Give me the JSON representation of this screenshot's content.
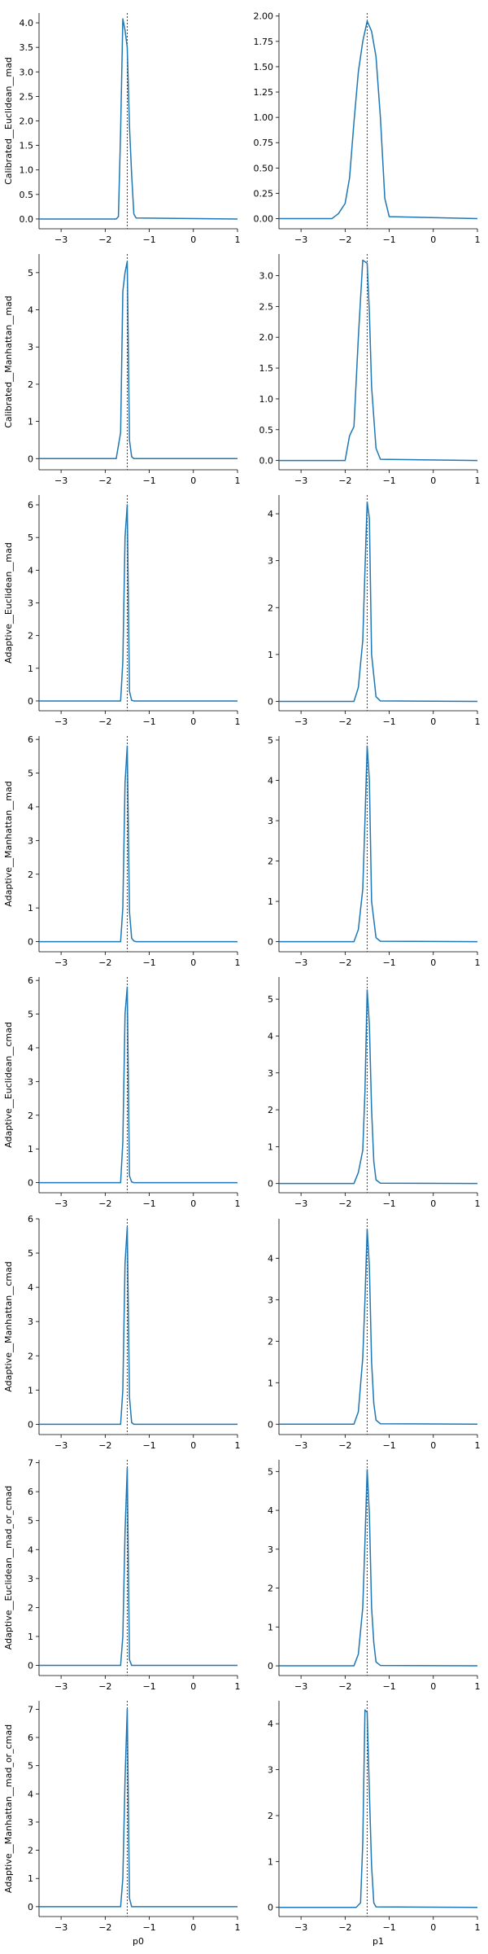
{
  "chart_data": [
    {
      "type": "line",
      "row_label": "Calibrated__Euclidean__mad",
      "xlabel": "",
      "xlim": [
        -3.5,
        1.0
      ],
      "ylim": [
        -0.2,
        4.2
      ],
      "xticks": [
        -3,
        -2,
        -1,
        0,
        1
      ],
      "yticks": [
        0.0,
        0.5,
        1.0,
        1.5,
        2.0,
        2.5,
        3.0,
        3.5,
        4.0
      ],
      "ytick_labels": [
        "0.0",
        "0.5",
        "1.0",
        "1.5",
        "2.0",
        "2.5",
        "3.0",
        "3.5",
        "4.0"
      ],
      "reference_x": -1.5,
      "series": [
        {
          "x": [
            -3.5,
            -1.75,
            -1.7,
            -1.65,
            -1.6,
            -1.55,
            -1.5,
            -1.45,
            -1.4,
            -1.35,
            -1.3,
            1.0
          ],
          "y": [
            0,
            0,
            0.05,
            1.8,
            4.08,
            3.85,
            3.5,
            1.9,
            0.9,
            0.1,
            0.02,
            0
          ]
        }
      ]
    },
    {
      "type": "line",
      "row_label": "",
      "xlabel": "",
      "xlim": [
        -3.5,
        1.0
      ],
      "ylim": [
        -0.1,
        2.03
      ],
      "xticks": [
        -3,
        -2,
        -1,
        0,
        1
      ],
      "yticks": [
        0.0,
        0.25,
        0.5,
        0.75,
        1.0,
        1.25,
        1.5,
        1.75,
        2.0
      ],
      "ytick_labels": [
        "0.00",
        "0.25",
        "0.50",
        "0.75",
        "1.00",
        "1.25",
        "1.50",
        "1.75",
        "2.00"
      ],
      "reference_x": -1.5,
      "series": [
        {
          "x": [
            -3.5,
            -2.3,
            -2.15,
            -2.0,
            -1.9,
            -1.8,
            -1.7,
            -1.6,
            -1.5,
            -1.4,
            -1.3,
            -1.2,
            -1.1,
            -1.0,
            1.0
          ],
          "y": [
            0,
            0,
            0.05,
            0.15,
            0.4,
            0.95,
            1.45,
            1.75,
            1.95,
            1.85,
            1.6,
            1.0,
            0.2,
            0.02,
            0
          ]
        }
      ]
    },
    {
      "type": "line",
      "row_label": "Calibrated__Manhattan__mad",
      "xlabel": "",
      "xlim": [
        -3.5,
        1.0
      ],
      "ylim": [
        -0.3,
        5.5
      ],
      "xticks": [
        -3,
        -2,
        -1,
        0,
        1
      ],
      "yticks": [
        0,
        1,
        2,
        3,
        4,
        5
      ],
      "ytick_labels": [
        "0",
        "1",
        "2",
        "3",
        "4",
        "5"
      ],
      "reference_x": -1.5,
      "series": [
        {
          "x": [
            -3.5,
            -1.75,
            -1.65,
            -1.6,
            -1.55,
            -1.5,
            -1.45,
            -1.4,
            -1.35,
            1.0
          ],
          "y": [
            0,
            0,
            0.7,
            4.5,
            5.0,
            5.3,
            0.5,
            0.05,
            0,
            0
          ]
        }
      ]
    },
    {
      "type": "line",
      "row_label": "",
      "xlabel": "",
      "xlim": [
        -3.5,
        1.0
      ],
      "ylim": [
        -0.15,
        3.35
      ],
      "xticks": [
        -3,
        -2,
        -1,
        0,
        1
      ],
      "yticks": [
        0.0,
        0.5,
        1.0,
        1.5,
        2.0,
        2.5,
        3.0
      ],
      "ytick_labels": [
        "0.0",
        "0.5",
        "1.0",
        "1.5",
        "2.0",
        "2.5",
        "3.0"
      ],
      "reference_x": -1.5,
      "series": [
        {
          "x": [
            -3.5,
            -2.0,
            -1.9,
            -1.8,
            -1.7,
            -1.6,
            -1.5,
            -1.45,
            -1.4,
            -1.3,
            -1.2,
            1.0
          ],
          "y": [
            0,
            0,
            0.4,
            0.55,
            2.0,
            3.25,
            3.2,
            2.4,
            1.2,
            0.2,
            0.02,
            0
          ]
        }
      ]
    },
    {
      "type": "line",
      "row_label": "Adaptive__Euclidean__mad",
      "xlabel": "",
      "xlim": [
        -3.5,
        1.0
      ],
      "ylim": [
        -0.3,
        6.3
      ],
      "xticks": [
        -3,
        -2,
        -1,
        0,
        1
      ],
      "yticks": [
        0,
        1,
        2,
        3,
        4,
        5,
        6
      ],
      "ytick_labels": [
        "0",
        "1",
        "2",
        "3",
        "4",
        "5",
        "6"
      ],
      "reference_x": -1.5,
      "series": [
        {
          "x": [
            -3.5,
            -1.65,
            -1.6,
            -1.55,
            -1.5,
            -1.45,
            -1.4,
            -1.35,
            1.0
          ],
          "y": [
            0,
            0,
            1.2,
            5.0,
            6.0,
            0.3,
            0.02,
            0,
            0
          ]
        }
      ]
    },
    {
      "type": "line",
      "row_label": "",
      "xlabel": "",
      "xlim": [
        -3.5,
        1.0
      ],
      "ylim": [
        -0.2,
        4.4
      ],
      "xticks": [
        -3,
        -2,
        -1,
        0,
        1
      ],
      "yticks": [
        0,
        1,
        2,
        3,
        4
      ],
      "ytick_labels": [
        "0",
        "1",
        "2",
        "3",
        "4"
      ],
      "reference_x": -1.5,
      "series": [
        {
          "x": [
            -3.5,
            -1.8,
            -1.7,
            -1.6,
            -1.55,
            -1.5,
            -1.45,
            -1.4,
            -1.3,
            -1.2,
            1.0
          ],
          "y": [
            0,
            0,
            0.3,
            1.3,
            2.8,
            4.25,
            3.9,
            1.0,
            0.1,
            0.01,
            0
          ]
        }
      ]
    },
    {
      "type": "line",
      "row_label": "Adaptive__Manhattan__mad",
      "xlabel": "",
      "xlim": [
        -3.5,
        1.0
      ],
      "ylim": [
        -0.3,
        6.1
      ],
      "xticks": [
        -3,
        -2,
        -1,
        0,
        1
      ],
      "yticks": [
        0,
        1,
        2,
        3,
        4,
        5,
        6
      ],
      "ytick_labels": [
        "0",
        "1",
        "2",
        "3",
        "4",
        "5",
        "6"
      ],
      "reference_x": -1.5,
      "series": [
        {
          "x": [
            -3.5,
            -1.65,
            -1.6,
            -1.55,
            -1.5,
            -1.45,
            -1.4,
            -1.35,
            -1.3,
            1.0
          ],
          "y": [
            0,
            0,
            1.0,
            4.7,
            5.8,
            0.9,
            0.1,
            0.02,
            0,
            0
          ]
        }
      ]
    },
    {
      "type": "line",
      "row_label": "",
      "xlabel": "",
      "xlim": [
        -3.5,
        1.0
      ],
      "ylim": [
        -0.25,
        5.1
      ],
      "xticks": [
        -3,
        -2,
        -1,
        0,
        1
      ],
      "yticks": [
        0,
        1,
        2,
        3,
        4,
        5
      ],
      "ytick_labels": [
        "0",
        "1",
        "2",
        "3",
        "4",
        "5"
      ],
      "reference_x": -1.5,
      "series": [
        {
          "x": [
            -3.5,
            -1.8,
            -1.7,
            -1.6,
            -1.55,
            -1.5,
            -1.45,
            -1.4,
            -1.3,
            -1.2,
            1.0
          ],
          "y": [
            0,
            0,
            0.3,
            1.3,
            3.0,
            4.85,
            4.0,
            1.0,
            0.1,
            0.01,
            0
          ]
        }
      ]
    },
    {
      "type": "line",
      "row_label": "Adaptive__Euclidean__cmad",
      "xlabel": "",
      "xlim": [
        -3.5,
        1.0
      ],
      "ylim": [
        -0.3,
        6.1
      ],
      "xticks": [
        -3,
        -2,
        -1,
        0,
        1
      ],
      "yticks": [
        0,
        1,
        2,
        3,
        4,
        5,
        6
      ],
      "ytick_labels": [
        "0",
        "1",
        "2",
        "3",
        "4",
        "5",
        "6"
      ],
      "reference_x": -1.5,
      "series": [
        {
          "x": [
            -3.5,
            -1.65,
            -1.6,
            -1.55,
            -1.5,
            -1.45,
            -1.4,
            -1.35,
            1.0
          ],
          "y": [
            0,
            0,
            1.2,
            5.0,
            5.8,
            0.2,
            0.02,
            0,
            0
          ]
        }
      ]
    },
    {
      "type": "line",
      "row_label": "",
      "xlabel": "",
      "xlim": [
        -3.5,
        1.0
      ],
      "ylim": [
        -0.25,
        5.6
      ],
      "xticks": [
        -3,
        -2,
        -1,
        0,
        1
      ],
      "yticks": [
        0,
        1,
        2,
        3,
        4,
        5
      ],
      "ytick_labels": [
        "0",
        "1",
        "2",
        "3",
        "4",
        "5"
      ],
      "reference_x": -1.5,
      "series": [
        {
          "x": [
            -3.5,
            -1.8,
            -1.7,
            -1.6,
            -1.55,
            -1.5,
            -1.45,
            -1.4,
            -1.35,
            -1.3,
            -1.2,
            1.0
          ],
          "y": [
            0,
            0,
            0.3,
            0.9,
            2.5,
            5.25,
            4.3,
            2.0,
            0.6,
            0.1,
            0.01,
            0
          ]
        }
      ]
    },
    {
      "type": "line",
      "row_label": "Adaptive__Manhattan__cmad",
      "xlabel": "",
      "xlim": [
        -3.5,
        1.0
      ],
      "ylim": [
        -0.3,
        6.0
      ],
      "xticks": [
        -3,
        -2,
        -1,
        0,
        1
      ],
      "yticks": [
        0,
        1,
        2,
        3,
        4,
        5,
        6
      ],
      "ytick_labels": [
        "0",
        "1",
        "2",
        "3",
        "4",
        "5",
        "6"
      ],
      "reference_x": -1.5,
      "series": [
        {
          "x": [
            -3.5,
            -1.65,
            -1.6,
            -1.55,
            -1.5,
            -1.45,
            -1.4,
            -1.35,
            1.0
          ],
          "y": [
            0,
            0,
            1.0,
            4.7,
            5.75,
            0.8,
            0.05,
            0,
            0
          ]
        }
      ]
    },
    {
      "type": "line",
      "row_label": "",
      "xlabel": "",
      "xlim": [
        -3.5,
        1.0
      ],
      "ylim": [
        -0.25,
        4.95
      ],
      "xticks": [
        -3,
        -2,
        -1,
        0,
        1
      ],
      "yticks": [
        0,
        1,
        2,
        3,
        4
      ],
      "ytick_labels": [
        "0",
        "1",
        "2",
        "3",
        "4"
      ],
      "reference_x": -1.5,
      "series": [
        {
          "x": [
            -3.5,
            -1.8,
            -1.7,
            -1.6,
            -1.55,
            -1.5,
            -1.45,
            -1.4,
            -1.35,
            -1.3,
            -1.2,
            1.0
          ],
          "y": [
            0,
            0,
            0.3,
            1.6,
            3.0,
            4.7,
            3.8,
            1.5,
            0.5,
            0.1,
            0.01,
            0
          ]
        }
      ]
    },
    {
      "type": "line",
      "row_label": "Adaptive__Euclidean__mad_or_cmad",
      "xlabel": "",
      "xlim": [
        -3.5,
        1.0
      ],
      "ylim": [
        -0.35,
        7.1
      ],
      "xticks": [
        -3,
        -2,
        -1,
        0,
        1
      ],
      "yticks": [
        0,
        1,
        2,
        3,
        4,
        5,
        6,
        7
      ],
      "ytick_labels": [
        "0",
        "1",
        "2",
        "3",
        "4",
        "5",
        "6",
        "7"
      ],
      "reference_x": -1.5,
      "series": [
        {
          "x": [
            -3.5,
            -1.65,
            -1.6,
            -1.55,
            -1.5,
            -1.45,
            -1.4,
            1.0
          ],
          "y": [
            0,
            0,
            1.0,
            4.6,
            6.8,
            0.2,
            0,
            0
          ]
        }
      ]
    },
    {
      "type": "line",
      "row_label": "",
      "xlabel": "",
      "xlim": [
        -3.5,
        1.0
      ],
      "ylim": [
        -0.25,
        5.3
      ],
      "xticks": [
        -3,
        -2,
        -1,
        0,
        1
      ],
      "yticks": [
        0,
        1,
        2,
        3,
        4,
        5
      ],
      "ytick_labels": [
        "0",
        "1",
        "2",
        "3",
        "4",
        "5"
      ],
      "reference_x": -1.5,
      "series": [
        {
          "x": [
            -3.5,
            -1.8,
            -1.7,
            -1.6,
            -1.55,
            -1.5,
            -1.45,
            -1.4,
            -1.35,
            -1.3,
            -1.2,
            1.0
          ],
          "y": [
            0,
            0,
            0.3,
            1.5,
            3.2,
            5.05,
            3.9,
            1.5,
            0.6,
            0.1,
            0.01,
            0
          ]
        }
      ]
    },
    {
      "type": "line",
      "row_label": "Adaptive__Manhattan__mad_or_cmad",
      "xlabel": "p0",
      "xlim": [
        -3.5,
        1.0
      ],
      "ylim": [
        -0.35,
        7.3
      ],
      "xticks": [
        -3,
        -2,
        -1,
        0,
        1
      ],
      "yticks": [
        0,
        1,
        2,
        3,
        4,
        5,
        6,
        7
      ],
      "ytick_labels": [
        "0",
        "1",
        "2",
        "3",
        "4",
        "5",
        "6",
        "7"
      ],
      "reference_x": -1.5,
      "series": [
        {
          "x": [
            -3.5,
            -1.65,
            -1.6,
            -1.55,
            -1.5,
            -1.45,
            -1.4,
            1.0
          ],
          "y": [
            0,
            0,
            1.0,
            4.5,
            7.0,
            0.3,
            0,
            0
          ]
        }
      ]
    },
    {
      "type": "line",
      "row_label": "",
      "xlabel": "p1",
      "xlim": [
        -3.5,
        1.0
      ],
      "ylim": [
        -0.2,
        4.5
      ],
      "xticks": [
        -3,
        -2,
        -1,
        0,
        1
      ],
      "yticks": [
        0,
        1,
        2,
        3,
        4
      ],
      "ytick_labels": [
        "0",
        "1",
        "2",
        "3",
        "4"
      ],
      "reference_x": -1.5,
      "series": [
        {
          "x": [
            -3.5,
            -1.75,
            -1.65,
            -1.6,
            -1.55,
            -1.5,
            -1.45,
            -1.4,
            -1.35,
            -1.3,
            1.0
          ],
          "y": [
            0,
            0,
            0.1,
            1.4,
            4.3,
            4.25,
            2.5,
            0.9,
            0.1,
            0.01,
            0
          ]
        }
      ]
    }
  ],
  "colors": {
    "line": "#1f77b4",
    "reference_line": "#404040",
    "axis": "#000000"
  }
}
